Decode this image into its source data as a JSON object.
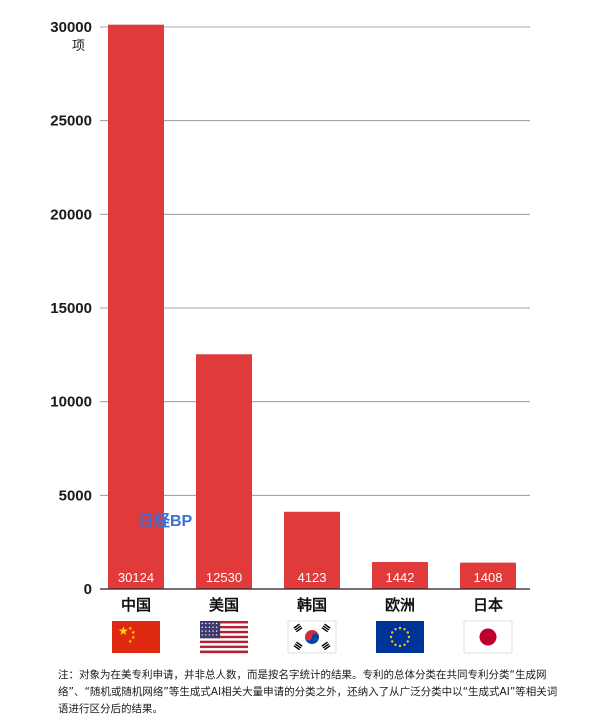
{
  "chart_data": {
    "type": "bar",
    "categories": [
      "中国",
      "美国",
      "韩国",
      "欧洲",
      "日本"
    ],
    "values": [
      30124,
      12530,
      4123,
      1442,
      1408
    ],
    "ylim": [
      0,
      30000
    ],
    "yticks": [
      0,
      5000,
      10000,
      15000,
      20000,
      25000,
      30000
    ],
    "unit": "项",
    "grid": true,
    "bar_color": "#e03a3a",
    "flags": [
      "china-flag-icon",
      "usa-flag-icon",
      "south-korea-flag-icon",
      "eu-flag-icon",
      "japan-flag-icon"
    ]
  },
  "watermark": "日経BP",
  "note": "注：对象为在美专利申请，并非总人数，而是按名字统计的结果。专利的总体分类在共同专利分类“生成网络”、“随机或随机网络”等生成式AI相关大量申请的分类之外，还纳入了从广泛分类中以“生成式AI”等相关词语进行区分后的结果。"
}
